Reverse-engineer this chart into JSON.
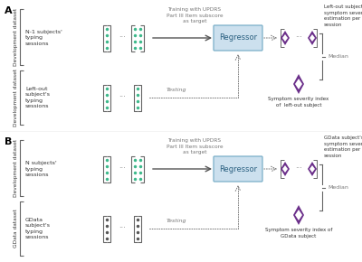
{
  "bg_color": "#ffffff",
  "teal_dot": "#3cb88a",
  "dark_dot": "#555555",
  "purple_fill": "#6b2f8a",
  "purple_border": "#6b2f8a",
  "regressor_fill": "#cce0ee",
  "regressor_border": "#7aafc8",
  "arrow_color": "#555555",
  "bracket_color": "#666666",
  "text_color": "#333333",
  "gray_text": "#777777",
  "panels": [
    {
      "label": "A",
      "top_brace_label": "Development dataset",
      "top_group_label": "N-1 subjects'\ntyping\nsessions",
      "bot_brace_label": "Development dataset",
      "bot_group_label": "Left-out\nsubject's\ntyping\nsessions",
      "training_label": "Training with UPDRS\nPart III Item subscore\nas target",
      "testing_label": "Testing",
      "regressor_label": "Regressor",
      "right_title": "Left-out subject's\nsymptom severity index\nestimation per typing\nsession",
      "median_label": "Median",
      "bottom_label": "Symptom severity index\nof  left-out subject",
      "bot_dots_teal": true
    },
    {
      "label": "B",
      "top_brace_label": "Development dataset",
      "top_group_label": "N subjects'\ntyping\nsessions",
      "bot_brace_label": "GData dataset",
      "bot_group_label": "GData\nsubject's\ntyping\nsessions",
      "training_label": "Training with UPDRS\nPart III Item subscore\nas target",
      "testing_label": "Testing",
      "regressor_label": "Regressor",
      "right_title": "GData subject's\nsymptom severity index\nestimation per typing\nsession",
      "median_label": "Median",
      "bottom_label": "Symptom severity index of\nGData subject",
      "bot_dots_teal": false
    }
  ]
}
